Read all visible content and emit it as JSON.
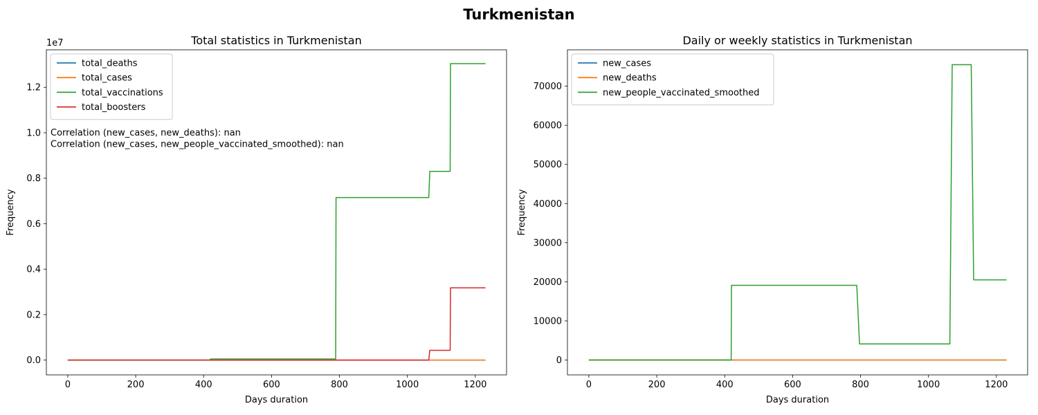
{
  "suptitle": "Turkmenistan",
  "chart_data": [
    {
      "type": "line",
      "title": "Total statistics in Turkmenistan",
      "xlabel": "Days duration",
      "ylabel": "Frequency",
      "offset_text": "1e7",
      "xlim": [
        -63,
        1292
      ],
      "ylim": [
        -0.065,
        1.365
      ],
      "xticks": [
        0,
        200,
        400,
        600,
        800,
        1000,
        1200
      ],
      "yticks": [
        0.0,
        0.2,
        0.4,
        0.6,
        0.8,
        1.0,
        1.2
      ],
      "ytick_labels": [
        "0.0",
        "0.2",
        "0.4",
        "0.6",
        "0.8",
        "1.0",
        "1.2"
      ],
      "legend_position": "upper-left",
      "annotations": [
        "Correlation (new_cases, new_deaths): nan",
        "Correlation (new_cases, new_people_vaccinated_smoothed): nan"
      ],
      "series": [
        {
          "name": "total_deaths",
          "color": "#1f77b4",
          "x": [
            0,
            1230
          ],
          "y": [
            0,
            0
          ]
        },
        {
          "name": "total_cases",
          "color": "#ff7f0e",
          "x": [
            0,
            1230
          ],
          "y": [
            0,
            0
          ]
        },
        {
          "name": "total_vaccinations",
          "color": "#2ca02c",
          "x": [
            0,
            419,
            420,
            789,
            790,
            1063,
            1066,
            1126,
            1127,
            1230
          ],
          "y": [
            0,
            0,
            0.005,
            0.005,
            0.715,
            0.715,
            0.83,
            0.83,
            1.304,
            1.304
          ]
        },
        {
          "name": "total_boosters",
          "color": "#d62728",
          "x": [
            0,
            1063,
            1066,
            1126,
            1127,
            1230
          ],
          "y": [
            0,
            0,
            0.043,
            0.043,
            0.318,
            0.318
          ]
        }
      ]
    },
    {
      "type": "line",
      "title": "Daily or weekly statistics in Turkmenistan",
      "xlabel": "Days duration",
      "ylabel": "Frequency",
      "xlim": [
        -63,
        1292
      ],
      "ylim": [
        -3800,
        79300
      ],
      "xticks": [
        0,
        200,
        400,
        600,
        800,
        1000,
        1200
      ],
      "yticks": [
        0,
        10000,
        20000,
        30000,
        40000,
        50000,
        60000,
        70000
      ],
      "ytick_labels": [
        "0",
        "10000",
        "20000",
        "30000",
        "40000",
        "50000",
        "60000",
        "70000"
      ],
      "legend_position": "upper-left",
      "series": [
        {
          "name": "new_cases",
          "color": "#1f77b4",
          "x": [
            0,
            1230
          ],
          "y": [
            0,
            0
          ]
        },
        {
          "name": "new_deaths",
          "color": "#ff7f0e",
          "x": [
            0,
            1230
          ],
          "y": [
            0,
            0
          ]
        },
        {
          "name": "new_people_vaccinated_smoothed",
          "color": "#2ca02c",
          "x": [
            0,
            419,
            420,
            789,
            797,
            1063,
            1070,
            1126,
            1133,
            1230
          ],
          "y": [
            0,
            0,
            19100,
            19100,
            4100,
            4100,
            75500,
            75500,
            20500,
            20500
          ]
        }
      ]
    }
  ]
}
